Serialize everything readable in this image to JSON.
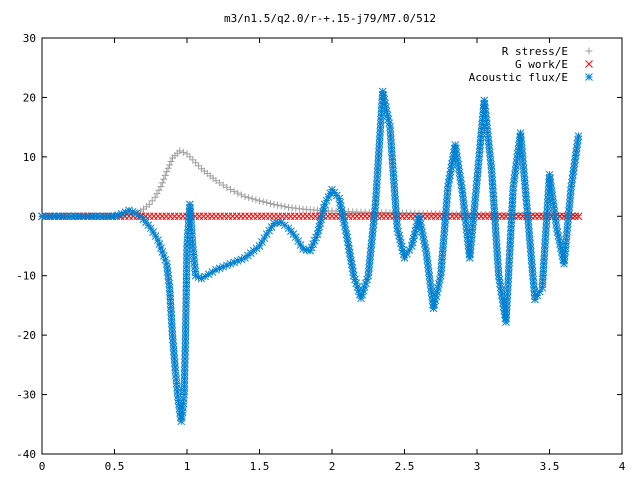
{
  "chart_data": {
    "type": "scatter",
    "title": "m3/n1.5/q2.0/r-+.15-j79/M7.0/512",
    "xlabel": "",
    "ylabel": "",
    "xlim": [
      0,
      4
    ],
    "ylim": [
      -40,
      30
    ],
    "xticks": [
      0,
      0.5,
      1,
      1.5,
      2,
      2.5,
      3,
      3.5,
      4
    ],
    "xtick_labels": [
      "0",
      "0.5",
      "1",
      "1.5",
      "2",
      "2.5",
      "3",
      "3.5",
      "4"
    ],
    "yticks": [
      -40,
      -30,
      -20,
      -10,
      0,
      10,
      20,
      30
    ],
    "ytick_labels": [
      "-40",
      "-30",
      "-20",
      "-10",
      "0",
      "10",
      "20",
      "30"
    ],
    "grid": false,
    "legend_position": "top-right",
    "series": [
      {
        "name": "R stress/E",
        "marker": "plus",
        "color": "#a0a0a0",
        "points": [
          [
            0.0,
            0
          ],
          [
            0.1,
            0
          ],
          [
            0.2,
            0
          ],
          [
            0.3,
            0
          ],
          [
            0.4,
            0
          ],
          [
            0.5,
            0
          ],
          [
            0.58,
            0.2
          ],
          [
            0.62,
            0.3
          ],
          [
            0.66,
            0.6
          ],
          [
            0.7,
            1.2
          ],
          [
            0.74,
            2.0
          ],
          [
            0.78,
            3.2
          ],
          [
            0.82,
            5.0
          ],
          [
            0.86,
            7.5
          ],
          [
            0.9,
            9.8
          ],
          [
            0.95,
            11.0
          ],
          [
            1.0,
            10.5
          ],
          [
            1.1,
            8.0
          ],
          [
            1.2,
            6.0
          ],
          [
            1.3,
            4.5
          ],
          [
            1.4,
            3.3
          ],
          [
            1.5,
            2.6
          ],
          [
            1.6,
            2.0
          ],
          [
            1.7,
            1.5
          ],
          [
            1.8,
            1.2
          ],
          [
            1.9,
            1.0
          ],
          [
            2.0,
            0.9
          ],
          [
            2.2,
            0.7
          ],
          [
            2.4,
            0.6
          ],
          [
            2.6,
            0.5
          ],
          [
            2.8,
            0.4
          ],
          [
            3.0,
            0.3
          ],
          [
            3.2,
            0.2
          ],
          [
            3.4,
            0.15
          ],
          [
            3.6,
            0.1
          ],
          [
            3.7,
            0.1
          ]
        ]
      },
      {
        "name": "G work/E",
        "marker": "cross",
        "color": "#ff0000",
        "points": [
          [
            0.0,
            0
          ],
          [
            0.2,
            0
          ],
          [
            0.4,
            0
          ],
          [
            0.6,
            0
          ],
          [
            0.8,
            0
          ],
          [
            1.0,
            0
          ],
          [
            1.2,
            0
          ],
          [
            1.4,
            0
          ],
          [
            1.6,
            0
          ],
          [
            1.8,
            0
          ],
          [
            2.0,
            0
          ],
          [
            2.2,
            0
          ],
          [
            2.4,
            0
          ],
          [
            2.6,
            0
          ],
          [
            2.8,
            0
          ],
          [
            3.0,
            0
          ],
          [
            3.2,
            0
          ],
          [
            3.4,
            0
          ],
          [
            3.6,
            0
          ],
          [
            3.7,
            0
          ]
        ]
      },
      {
        "name": "Acoustic flux/E",
        "marker": "star",
        "color": "#0080d0",
        "points": [
          [
            0.0,
            0
          ],
          [
            0.1,
            0
          ],
          [
            0.2,
            0
          ],
          [
            0.3,
            0
          ],
          [
            0.4,
            0
          ],
          [
            0.5,
            0
          ],
          [
            0.55,
            0.4
          ],
          [
            0.6,
            1.0
          ],
          [
            0.65,
            0.5
          ],
          [
            0.7,
            -0.5
          ],
          [
            0.75,
            -2.0
          ],
          [
            0.8,
            -4.0
          ],
          [
            0.83,
            -6.0
          ],
          [
            0.86,
            -8.0
          ],
          [
            0.88,
            -12
          ],
          [
            0.9,
            -20
          ],
          [
            0.92,
            -26
          ],
          [
            0.94,
            -31
          ],
          [
            0.96,
            -34.5
          ],
          [
            0.97,
            -33
          ],
          [
            0.98,
            -30
          ],
          [
            0.99,
            -20
          ],
          [
            1.0,
            -5
          ],
          [
            1.02,
            2
          ],
          [
            1.04,
            -5
          ],
          [
            1.06,
            -10
          ],
          [
            1.1,
            -10.5
          ],
          [
            1.2,
            -9
          ],
          [
            1.3,
            -8
          ],
          [
            1.4,
            -7
          ],
          [
            1.5,
            -5
          ],
          [
            1.55,
            -3
          ],
          [
            1.6,
            -1.2
          ],
          [
            1.65,
            -1.0
          ],
          [
            1.7,
            -2.0
          ],
          [
            1.75,
            -3.5
          ],
          [
            1.8,
            -5.5
          ],
          [
            1.85,
            -5.8
          ],
          [
            1.9,
            -3
          ],
          [
            1.95,
            2
          ],
          [
            2.0,
            4.5
          ],
          [
            2.05,
            3
          ],
          [
            2.1,
            -3
          ],
          [
            2.15,
            -10
          ],
          [
            2.2,
            -13.8
          ],
          [
            2.25,
            -10
          ],
          [
            2.3,
            2
          ],
          [
            2.35,
            21
          ],
          [
            2.4,
            15
          ],
          [
            2.45,
            -2
          ],
          [
            2.5,
            -7
          ],
          [
            2.55,
            -5
          ],
          [
            2.6,
            0
          ],
          [
            2.65,
            -6
          ],
          [
            2.7,
            -15.5
          ],
          [
            2.75,
            -10
          ],
          [
            2.8,
            5
          ],
          [
            2.85,
            12
          ],
          [
            2.9,
            4
          ],
          [
            2.95,
            -7
          ],
          [
            3.0,
            6
          ],
          [
            3.05,
            19.5
          ],
          [
            3.1,
            8
          ],
          [
            3.15,
            -10
          ],
          [
            3.2,
            -17.8
          ],
          [
            3.25,
            5
          ],
          [
            3.3,
            14
          ],
          [
            3.35,
            0
          ],
          [
            3.4,
            -14
          ],
          [
            3.45,
            -12
          ],
          [
            3.5,
            7
          ],
          [
            3.55,
            -2
          ],
          [
            3.6,
            -8
          ],
          [
            3.65,
            5
          ],
          [
            3.7,
            13.5
          ]
        ]
      }
    ]
  }
}
